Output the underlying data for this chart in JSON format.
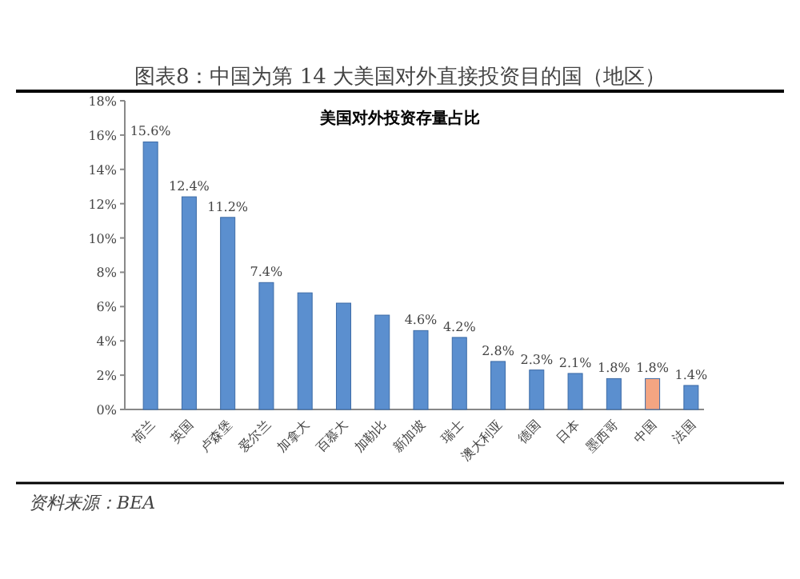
{
  "chart_data": {
    "type": "bar",
    "title": "图表8：中国为第 14 大美国对外直接投资目的国（地区）",
    "subtitle": "美国对外投资存量占比",
    "categories": [
      "荷兰",
      "英国",
      "卢森堡",
      "爱尔兰",
      "加拿大",
      "百慕大",
      "加勒比",
      "新加坡",
      "瑞士",
      "澳大利亚",
      "德国",
      "日本",
      "墨西哥",
      "中国",
      "法国"
    ],
    "values": [
      15.6,
      12.4,
      11.2,
      7.4,
      6.8,
      6.2,
      5.5,
      4.6,
      4.2,
      2.8,
      2.3,
      2.1,
      1.8,
      1.8,
      1.4
    ],
    "value_labels": [
      "15.6%",
      "12.4%",
      "11.2%",
      "7.4%",
      null,
      null,
      null,
      "4.6%",
      "4.2%",
      "2.8%",
      "2.3%",
      "2.1%",
      "1.8%",
      "1.8%",
      "1.4%"
    ],
    "colors": [
      "#5b8fcf",
      "#5b8fcf",
      "#5b8fcf",
      "#5b8fcf",
      "#5b8fcf",
      "#5b8fcf",
      "#5b8fcf",
      "#5b8fcf",
      "#5b8fcf",
      "#5b8fcf",
      "#5b8fcf",
      "#5b8fcf",
      "#5b8fcf",
      "#f4a582",
      "#5b8fcf"
    ],
    "ylim": [
      0,
      18
    ],
    "yticks": [
      {
        "value": 0,
        "label": "0%"
      },
      {
        "value": 2,
        "label": "2%"
      },
      {
        "value": 4,
        "label": "4%"
      },
      {
        "value": 6,
        "label": "6%"
      },
      {
        "value": 8,
        "label": "8%"
      },
      {
        "value": 10,
        "label": "10%"
      },
      {
        "value": 12,
        "label": "12%"
      },
      {
        "value": 14,
        "label": "14%"
      },
      {
        "value": 16,
        "label": "16%"
      },
      {
        "value": 18,
        "label": "18%"
      }
    ],
    "grid": false,
    "annotations": [
      "资料来源：BEA"
    ]
  }
}
